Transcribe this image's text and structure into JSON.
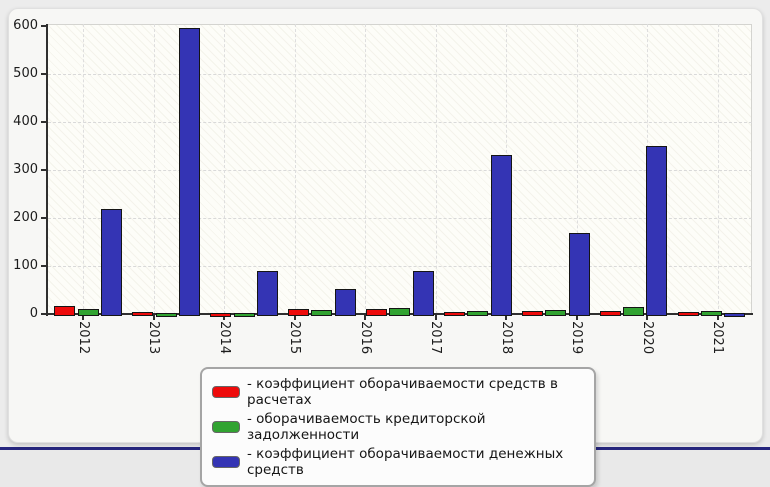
{
  "chart_data": {
    "type": "bar",
    "title": "",
    "categories": [
      "2012",
      "2013",
      "2014",
      "2015",
      "2016",
      "2017",
      "2018",
      "2019",
      "2020",
      "2021"
    ],
    "series": [
      {
        "name": "коэффициент оборачиваемости средств в расчетах",
        "color": "#ee0b0b",
        "values": [
          16,
          4,
          2,
          10,
          10,
          5,
          6,
          6,
          5,
          0
        ]
      },
      {
        "name": "оборачиваемость кредиторской задолженности",
        "color": "#31a331",
        "values": [
          10,
          3,
          2,
          8,
          12,
          6,
          8,
          15,
          7,
          0
        ]
      },
      {
        "name": "коэффициент оборачиваемости денежных средств",
        "color": "#3434b4",
        "values": [
          218,
          595,
          90,
          53,
          89,
          330,
          168,
          350,
          1,
          0
        ]
      }
    ],
    "xlabel": "",
    "ylabel": "",
    "ylim": [
      0,
      600
    ],
    "ytick_step": 100,
    "yticks": [
      "0",
      "100",
      "200",
      "300",
      "400",
      "500",
      "600"
    ],
    "grid": true,
    "legend_position": "bottom",
    "visible_bar_groups": 9
  },
  "legend": {
    "items": [
      {
        "label": "- коэффициент оборачиваемости средств в расчетах",
        "color": "#ee0b0b"
      },
      {
        "label": "- оборачиваемость кредиторской задолженности",
        "color": "#31a331"
      },
      {
        "label": "- коэффициент оборачиваемости денежных средств",
        "color": "#3434b4"
      }
    ]
  },
  "colors": {
    "red_series": "#ee0b0b",
    "green_series": "#31a331",
    "blue_series": "#3434b4",
    "window_bottom_border": "#26267e"
  }
}
